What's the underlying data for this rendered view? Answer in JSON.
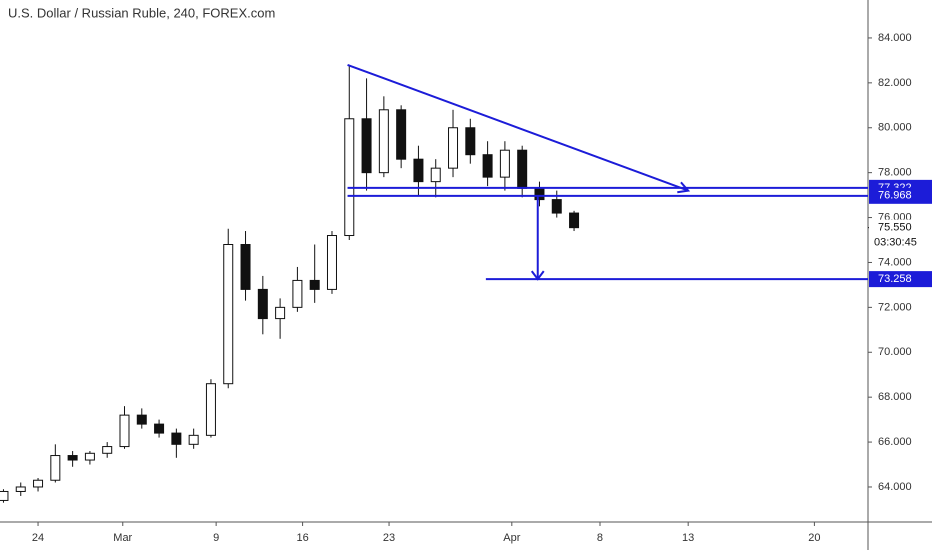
{
  "chart_data": {
    "type": "candlestick",
    "title": "U.S. Dollar / Russian Ruble, 240, FOREX.com",
    "x": [
      -2,
      -1,
      0,
      1,
      2,
      3,
      4,
      5,
      6,
      7,
      8,
      9,
      10,
      11,
      12,
      13,
      14,
      15,
      16,
      17,
      18,
      19,
      20,
      21,
      22,
      23,
      24,
      25,
      26,
      27,
      28,
      29,
      30,
      31
    ],
    "open": [
      63.4,
      63.8,
      64.0,
      64.3,
      65.4,
      65.2,
      65.5,
      65.8,
      67.2,
      66.8,
      66.4,
      65.9,
      66.3,
      68.6,
      74.8,
      72.8,
      71.5,
      72.0,
      73.2,
      72.8,
      75.2,
      80.4,
      78.0,
      80.8,
      78.6,
      77.6,
      78.2,
      80.0,
      78.8,
      77.8,
      79.0,
      77.3,
      76.8,
      76.2
    ],
    "high": [
      63.9,
      64.2,
      64.4,
      65.9,
      65.6,
      65.6,
      66.0,
      67.6,
      67.5,
      67.0,
      66.6,
      66.6,
      68.8,
      75.5,
      75.4,
      73.4,
      72.4,
      73.8,
      74.8,
      75.4,
      82.8,
      82.2,
      81.4,
      81.0,
      79.2,
      78.6,
      80.8,
      80.4,
      79.4,
      79.4,
      79.2,
      77.6,
      77.2,
      76.3
    ],
    "low": [
      63.3,
      63.6,
      63.8,
      64.2,
      64.9,
      65.0,
      65.3,
      65.7,
      66.6,
      66.2,
      65.3,
      65.7,
      66.2,
      68.4,
      72.3,
      70.8,
      70.6,
      71.8,
      72.2,
      72.6,
      75.0,
      77.2,
      77.8,
      78.2,
      77.0,
      76.9,
      77.8,
      78.4,
      77.4,
      77.2,
      76.9,
      76.5,
      76.0,
      75.4
    ],
    "close": [
      63.8,
      64.0,
      64.3,
      65.4,
      65.2,
      65.5,
      65.8,
      67.2,
      66.8,
      66.4,
      65.9,
      66.3,
      68.6,
      74.8,
      72.8,
      71.5,
      72.0,
      73.2,
      72.8,
      75.2,
      80.4,
      78.0,
      80.8,
      78.6,
      77.6,
      78.2,
      80.0,
      78.8,
      77.8,
      79.0,
      77.3,
      76.8,
      76.2,
      75.55
    ],
    "xlim": [
      -2.2,
      48.0
    ],
    "xticks": [
      {
        "value": 0,
        "label": "24"
      },
      {
        "value": 4.9,
        "label": "Mar"
      },
      {
        "value": 10.3,
        "label": "9"
      },
      {
        "value": 15.3,
        "label": "16"
      },
      {
        "value": 20.3,
        "label": "23"
      },
      {
        "value": 27.4,
        "label": "Apr"
      },
      {
        "value": 32.5,
        "label": "8"
      },
      {
        "value": 37.6,
        "label": "13"
      },
      {
        "value": 44.9,
        "label": "20"
      }
    ],
    "ylim": [
      62.44,
      85.69
    ],
    "yticks": [
      {
        "value": 64,
        "label": "64.000"
      },
      {
        "value": 66,
        "label": "66.000"
      },
      {
        "value": 68,
        "label": "68.000"
      },
      {
        "value": 70,
        "label": "70.000"
      },
      {
        "value": 72,
        "label": "72.000"
      },
      {
        "value": 74,
        "label": "74.000"
      },
      {
        "value": 76,
        "label": "76.000"
      },
      {
        "value": 78,
        "label": "78.000"
      },
      {
        "value": 80,
        "label": "80.000"
      },
      {
        "value": 82,
        "label": "82.000"
      },
      {
        "value": 84,
        "label": "84.000"
      }
    ],
    "levels": [
      {
        "value": 77.322,
        "start": 17.9
      },
      {
        "value": 76.968,
        "start": 17.9
      },
      {
        "value": 73.258,
        "start": 25.9
      }
    ],
    "trendline": {
      "x": [
        17.9,
        37.6
      ],
      "y": [
        82.8,
        77.2
      ]
    },
    "projection_x": 28.9,
    "current_price": {
      "value": 75.55,
      "label": "75.550"
    },
    "countdown": "03:30:45",
    "line_color": "#1c1cd8",
    "up_color": "#ffffff",
    "down_color": "#111111"
  }
}
